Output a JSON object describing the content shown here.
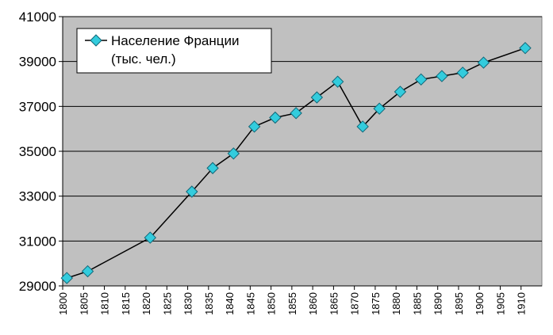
{
  "chart_data": {
    "type": "line",
    "title": "",
    "xlabel": "",
    "ylabel": "",
    "xlim": [
      1800,
      1915
    ],
    "ylim": [
      29000,
      41000
    ],
    "y_ticks": [
      29000,
      31000,
      33000,
      35000,
      37000,
      39000,
      41000
    ],
    "x_ticks": [
      1800,
      1805,
      1810,
      1815,
      1820,
      1825,
      1830,
      1835,
      1840,
      1845,
      1850,
      1855,
      1860,
      1865,
      1870,
      1875,
      1880,
      1885,
      1890,
      1895,
      1900,
      1905,
      1910
    ],
    "grid": "horizontal",
    "legend_position": "top-left",
    "colors": {
      "plot_bg": "#c0c0c0",
      "line": "#000000",
      "marker_fill": "#33ccdd",
      "marker_stroke": "#116677",
      "grid": "#000000"
    },
    "series": [
      {
        "name": "Население Франции\n(тыс. чел.)",
        "marker": "diamond",
        "points": [
          {
            "x": 1801,
            "y": 29350
          },
          {
            "x": 1806,
            "y": 29650
          },
          {
            "x": 1821,
            "y": 31150
          },
          {
            "x": 1831,
            "y": 33200
          },
          {
            "x": 1836,
            "y": 34250
          },
          {
            "x": 1841,
            "y": 34900
          },
          {
            "x": 1846,
            "y": 36100
          },
          {
            "x": 1851,
            "y": 36500
          },
          {
            "x": 1856,
            "y": 36700
          },
          {
            "x": 1861,
            "y": 37400
          },
          {
            "x": 1866,
            "y": 38100
          },
          {
            "x": 1872,
            "y": 36100
          },
          {
            "x": 1876,
            "y": 36900
          },
          {
            "x": 1881,
            "y": 37650
          },
          {
            "x": 1886,
            "y": 38200
          },
          {
            "x": 1891,
            "y": 38350
          },
          {
            "x": 1896,
            "y": 38500
          },
          {
            "x": 1901,
            "y": 38950
          },
          {
            "x": 1911,
            "y": 39600
          }
        ]
      }
    ]
  }
}
